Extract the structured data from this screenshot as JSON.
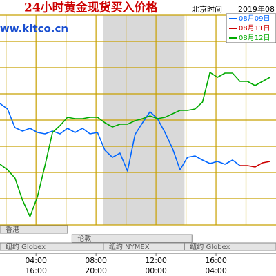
{
  "chart_data": {
    "type": "line",
    "title": "24小时黄金现货买入价格",
    "time_zone_label": "北京时间",
    "date_label": "2019年08",
    "watermark": "www.kitco.cn",
    "xlim": [
      1.6,
      20
    ],
    "ylim": [
      0,
      304
    ],
    "xgrid": [
      2,
      4,
      6,
      8,
      10,
      12,
      14,
      16,
      18
    ],
    "ygrid": [
      0,
      38,
      76,
      114,
      152,
      190,
      228,
      266,
      304
    ],
    "grid_color": "#c8a000",
    "shaded_range": [
      8.5,
      13.9
    ],
    "shade_color": "#d9d9d9",
    "xticks": [
      {
        "value": 4,
        "label": "04:00"
      },
      {
        "value": 8,
        "label": "08:00"
      },
      {
        "value": 12,
        "label": "12:00"
      },
      {
        "value": 16,
        "label": "16:00"
      }
    ],
    "x_secondary_labels": [
      "16:00",
      "20:00",
      "00:00",
      "04:00"
    ],
    "sessions": [
      {
        "label": "香港",
        "row": 0,
        "range": [
          1.6,
          6.1
        ]
      },
      {
        "label": "伦敦",
        "row": 1,
        "range": [
          6.4,
          14.4
        ]
      },
      {
        "label": "纽约 Globex",
        "row": 2,
        "range": [
          1.6,
          8.5
        ]
      },
      {
        "label": "纽约 NYMEX",
        "row": 2,
        "range": [
          8.5,
          13.9
        ]
      },
      {
        "label": "纽约 Globex",
        "row": 2,
        "range": [
          13.9,
          20
        ]
      }
    ],
    "x": [
      1.6,
      2.1,
      2.6,
      3.1,
      3.6,
      4.1,
      4.6,
      5.1,
      5.6,
      6.1,
      6.6,
      7.1,
      7.6,
      8.1,
      8.6,
      9.1,
      9.6,
      10.1,
      10.6,
      11.1,
      11.6,
      12.1,
      12.6,
      13.1,
      13.6,
      14.1,
      14.6,
      15.1,
      15.6,
      16.1,
      16.6,
      17.1,
      17.6,
      18.1,
      18.6,
      19.1,
      19.6
    ],
    "series": [
      {
        "name": "08月09日",
        "color": "#0066ff",
        "values": [
          176,
          168,
          141,
          136,
          140,
          134,
          132,
          136,
          132,
          140,
          134,
          140,
          132,
          134,
          108,
          98,
          104,
          78,
          131,
          148,
          164,
          154,
          134,
          111,
          80,
          98,
          100,
          94,
          89,
          92,
          88,
          94,
          86,
          null,
          null,
          null,
          null
        ]
      },
      {
        "name": "08月11日",
        "color": "#cc0000",
        "values": [
          null,
          null,
          null,
          null,
          null,
          null,
          null,
          null,
          null,
          null,
          null,
          null,
          null,
          null,
          null,
          null,
          null,
          null,
          null,
          null,
          null,
          null,
          null,
          null,
          null,
          null,
          null,
          null,
          null,
          null,
          null,
          null,
          86,
          86,
          84,
          90,
          92
        ]
      },
      {
        "name": "08月12日",
        "color": "#00aa00",
        "values": [
          88,
          80,
          68,
          36,
          12,
          41,
          86,
          134,
          144,
          156,
          154,
          154,
          156,
          156,
          148,
          142,
          146,
          146,
          151,
          154,
          158,
          154,
          156,
          161,
          166,
          166,
          168,
          178,
          221,
          214,
          220,
          220,
          208,
          208,
          202,
          208,
          214
        ]
      }
    ]
  }
}
